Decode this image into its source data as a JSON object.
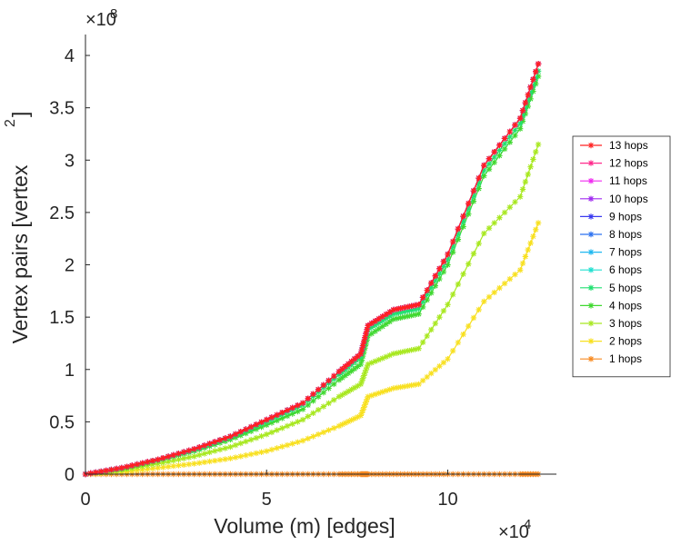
{
  "chart_data": {
    "type": "line",
    "title": "",
    "xlabel": "Volume (m) [edges]",
    "ylabel": "Vertex pairs [vertex",
    "ylabel_superscript": "2",
    "ylabel_close": "]",
    "x_exponent_label": "×10",
    "x_exponent": "4",
    "y_exponent_label": "×10",
    "y_exponent": "8",
    "xlim": [
      0,
      13
    ],
    "ylim": [
      0,
      4.2
    ],
    "xticks": [
      0,
      5,
      10
    ],
    "xtick_labels": [
      "0",
      "5",
      "10"
    ],
    "yticks": [
      0,
      0.5,
      1,
      1.5,
      2,
      2.5,
      3,
      3.5,
      4
    ],
    "ytick_labels": [
      "0",
      "0.5",
      "1",
      "1.5",
      "2",
      "2.5",
      "3",
      "3.5",
      "4"
    ],
    "units_note": "x in units of 1e4 edges, y in units of 1e8 vertex^2",
    "legend_position": "outside-right",
    "x": [
      0,
      1,
      2,
      3,
      4,
      5,
      6,
      7,
      7.6,
      7.8,
      8.5,
      9.2,
      10,
      11,
      12,
      12.5
    ],
    "series": [
      {
        "name": "13 hops",
        "color": "#ff2020",
        "values": [
          0,
          0.06,
          0.14,
          0.24,
          0.36,
          0.52,
          0.68,
          0.98,
          1.15,
          1.42,
          1.57,
          1.62,
          2.1,
          2.95,
          3.4,
          3.92
        ]
      },
      {
        "name": "12 hops",
        "color": "#ff2a8c",
        "values": [
          0,
          0.06,
          0.14,
          0.24,
          0.36,
          0.52,
          0.68,
          0.98,
          1.15,
          1.42,
          1.57,
          1.62,
          2.1,
          2.95,
          3.4,
          3.92
        ]
      },
      {
        "name": "11 hops",
        "color": "#f02af0",
        "values": [
          0,
          0.06,
          0.14,
          0.24,
          0.36,
          0.52,
          0.68,
          0.98,
          1.15,
          1.42,
          1.57,
          1.62,
          2.1,
          2.95,
          3.4,
          3.92
        ]
      },
      {
        "name": "10 hops",
        "color": "#a02af0",
        "values": [
          0,
          0.06,
          0.14,
          0.24,
          0.36,
          0.52,
          0.68,
          0.98,
          1.15,
          1.42,
          1.57,
          1.62,
          2.1,
          2.95,
          3.4,
          3.92
        ]
      },
      {
        "name": "9 hops",
        "color": "#3a3af0",
        "values": [
          0,
          0.06,
          0.14,
          0.24,
          0.36,
          0.52,
          0.68,
          0.98,
          1.15,
          1.42,
          1.57,
          1.62,
          2.1,
          2.95,
          3.4,
          3.92
        ]
      },
      {
        "name": "8 hops",
        "color": "#2a70f0",
        "values": [
          0,
          0.06,
          0.14,
          0.24,
          0.36,
          0.52,
          0.68,
          0.98,
          1.15,
          1.42,
          1.57,
          1.62,
          2.1,
          2.95,
          3.4,
          3.92
        ]
      },
      {
        "name": "7 hops",
        "color": "#20b8f0",
        "values": [
          0,
          0.06,
          0.14,
          0.24,
          0.36,
          0.52,
          0.68,
          0.98,
          1.15,
          1.42,
          1.57,
          1.62,
          2.1,
          2.95,
          3.4,
          3.92
        ]
      },
      {
        "name": "6 hops",
        "color": "#20e0d0",
        "values": [
          0,
          0.06,
          0.14,
          0.24,
          0.36,
          0.52,
          0.68,
          0.98,
          1.15,
          1.42,
          1.57,
          1.62,
          2.1,
          2.95,
          3.4,
          3.92
        ]
      },
      {
        "name": "5 hops",
        "color": "#20e070",
        "values": [
          0,
          0.06,
          0.14,
          0.23,
          0.35,
          0.5,
          0.66,
          0.95,
          1.12,
          1.38,
          1.53,
          1.58,
          2.05,
          2.9,
          3.35,
          3.85
        ]
      },
      {
        "name": "4 hops",
        "color": "#40d830",
        "values": [
          0,
          0.05,
          0.13,
          0.22,
          0.33,
          0.47,
          0.62,
          0.9,
          1.05,
          1.32,
          1.48,
          1.53,
          2.0,
          2.85,
          3.3,
          3.8
        ]
      },
      {
        "name": "3 hops",
        "color": "#a8e820",
        "values": [
          0,
          0.04,
          0.1,
          0.17,
          0.26,
          0.38,
          0.52,
          0.74,
          0.86,
          1.05,
          1.15,
          1.2,
          1.62,
          2.3,
          2.65,
          3.15
        ]
      },
      {
        "name": "2 hops",
        "color": "#f8e020",
        "values": [
          0,
          0.02,
          0.06,
          0.1,
          0.15,
          0.22,
          0.32,
          0.46,
          0.56,
          0.74,
          0.82,
          0.86,
          1.1,
          1.65,
          1.95,
          2.4
        ]
      },
      {
        "name": "1 hops",
        "color": "#f88a20",
        "values": [
          0,
          0,
          0,
          0,
          0,
          0,
          0,
          0,
          0,
          0,
          0,
          0,
          0,
          0,
          0,
          0
        ]
      }
    ]
  }
}
